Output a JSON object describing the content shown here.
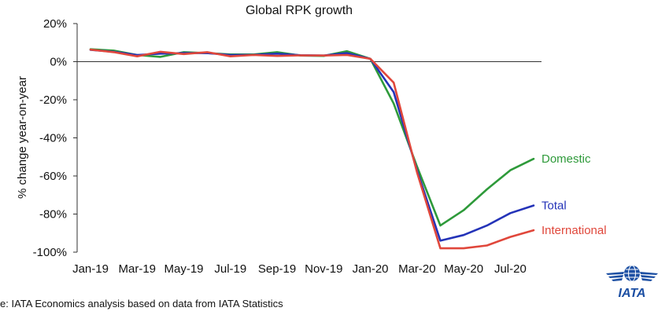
{
  "chart_data": {
    "type": "line",
    "title": "Global RPK growth",
    "ylabel": "% change year-on-year",
    "xlabel": "",
    "ylim": [
      -100,
      20
    ],
    "yticks": [
      20,
      0,
      -20,
      -40,
      -60,
      -80,
      -100
    ],
    "ytick_labels": [
      "20%",
      "0%",
      "-20%",
      "-40%",
      "-60%",
      "-80%",
      "-100%"
    ],
    "x": [
      "Jan-19",
      "Feb-19",
      "Mar-19",
      "Apr-19",
      "May-19",
      "Jun-19",
      "Jul-19",
      "Aug-19",
      "Sep-19",
      "Oct-19",
      "Nov-19",
      "Dec-19",
      "Jan-20",
      "Feb-20",
      "Mar-20",
      "Apr-20",
      "May-20",
      "Jun-20",
      "Jul-20",
      "Aug-20"
    ],
    "xtick_labels": [
      "Jan-19",
      "Mar-19",
      "May-19",
      "Jul-19",
      "Sep-19",
      "Nov-19",
      "Jan-20",
      "Mar-20",
      "May-20",
      "Jul-20"
    ],
    "grid": false,
    "series": [
      {
        "name": "Domestic",
        "color": "#2e9a3a",
        "values": [
          6.5,
          5.8,
          3.5,
          2.5,
          5.0,
          4.5,
          3.8,
          3.8,
          5.0,
          3.2,
          3.0,
          5.5,
          1.5,
          -22,
          -55,
          -86,
          -78,
          -67,
          -57,
          -51
        ]
      },
      {
        "name": "Total",
        "color": "#2433b8",
        "values": [
          6.2,
          5.2,
          3.5,
          4.2,
          4.5,
          4.5,
          3.5,
          3.6,
          4.2,
          3.4,
          3.2,
          4.5,
          1.5,
          -16,
          -57,
          -94,
          -91,
          -86,
          -79.5,
          -75.5
        ]
      },
      {
        "name": "International",
        "color": "#e0473b",
        "values": [
          6.3,
          5.0,
          2.8,
          5.2,
          4.0,
          5.0,
          2.8,
          3.5,
          3.0,
          3.3,
          3.2,
          3.5,
          1.5,
          -11,
          -58,
          -98,
          -98,
          -96.5,
          -92,
          -88.5
        ]
      }
    ]
  },
  "source_text": "e: IATA Economics analysis based on data from IATA Statistics",
  "logo": {
    "text": "IATA",
    "color": "#1c4fa3",
    "icon": "globe-wings-icon"
  }
}
